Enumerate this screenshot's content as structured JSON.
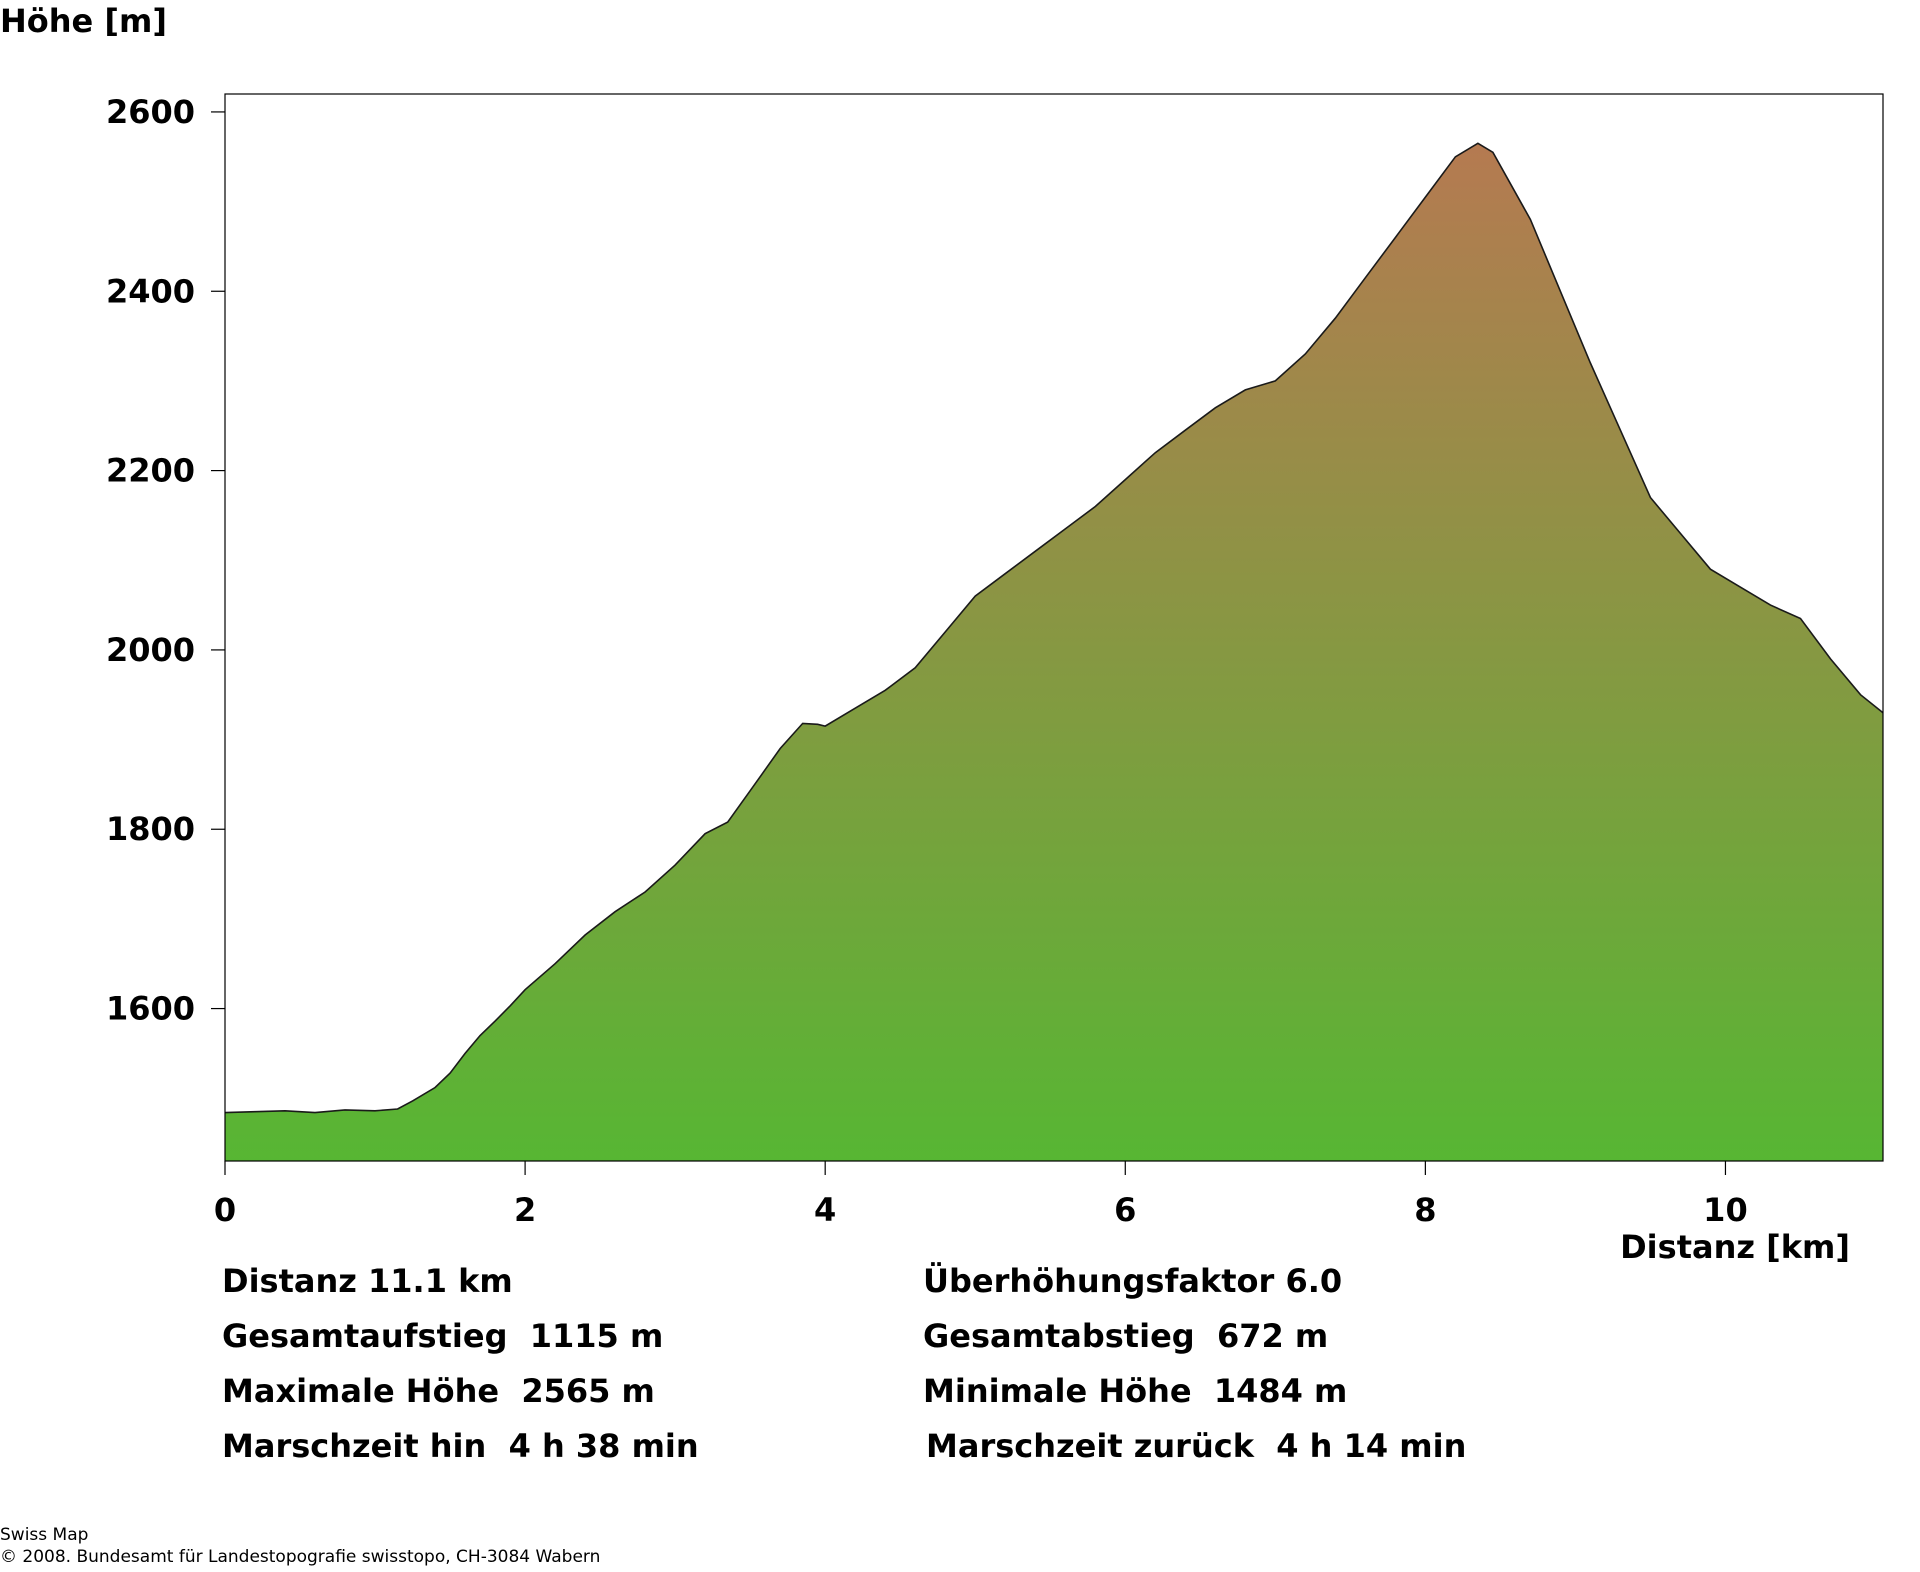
{
  "chart_data": {
    "type": "area",
    "ylabel": "Höhe [m]",
    "xlabel": "Distanz [km]",
    "xlim": [
      0,
      11.05
    ],
    "ylim": [
      1430,
      2620
    ],
    "x_ticks": [
      0,
      2,
      4,
      6,
      8,
      10
    ],
    "y_ticks": [
      1600,
      1800,
      2000,
      2200,
      2400,
      2600
    ],
    "grid": false,
    "gradient_colors": {
      "bottom": "#57b633",
      "top": "#b57a51"
    },
    "profile": {
      "x": [
        0,
        0.2,
        0.4,
        0.6,
        0.8,
        1.0,
        1.15,
        1.25,
        1.4,
        1.5,
        1.6,
        1.7,
        1.8,
        1.9,
        2.0,
        2.2,
        2.4,
        2.6,
        2.8,
        3.0,
        3.2,
        3.35,
        3.5,
        3.7,
        3.85,
        3.95,
        4.0,
        4.2,
        4.4,
        4.6,
        4.8,
        5.0,
        5.2,
        5.4,
        5.6,
        5.8,
        6.0,
        6.2,
        6.4,
        6.6,
        6.8,
        7.0,
        7.2,
        7.4,
        7.6,
        7.8,
        8.0,
        8.2,
        8.35,
        8.45,
        8.55,
        8.7,
        8.9,
        9.1,
        9.3,
        9.5,
        9.7,
        9.9,
        10.1,
        10.3,
        10.5,
        10.7,
        10.9,
        11.05
      ],
      "y": [
        1484,
        1485,
        1486,
        1484,
        1487,
        1486,
        1488,
        1497,
        1512,
        1528,
        1550,
        1570,
        1586,
        1603,
        1621,
        1650,
        1682,
        1708,
        1730,
        1760,
        1795,
        1808,
        1843,
        1890,
        1918,
        1917,
        1915,
        1935,
        1955,
        1980,
        2020,
        2060,
        2085,
        2110,
        2135,
        2160,
        2190,
        2220,
        2245,
        2270,
        2290,
        2300,
        2330,
        2370,
        2415,
        2460,
        2505,
        2550,
        2565,
        2555,
        2525,
        2480,
        2400,
        2320,
        2245,
        2170,
        2130,
        2090,
        2070,
        2050,
        2035,
        1990,
        1950,
        1930
      ]
    }
  },
  "stats": {
    "left": [
      "Distanz 11.1 km",
      "Gesamtaufstieg  1115 m",
      "Maximale Höhe  2565 m",
      "Marschzeit hin  4 h 38 min"
    ],
    "right": [
      "Überhöhungsfaktor 6.0",
      "Gesamtabstieg  672 m",
      "Minimale Höhe  1484 m",
      "Marschzeit zurück  4 h 14 min"
    ]
  },
  "footer": {
    "line1": "Swiss Map",
    "line2": "© 2008. Bundesamt für Landestopografie swisstopo, CH-3084 Wabern"
  }
}
